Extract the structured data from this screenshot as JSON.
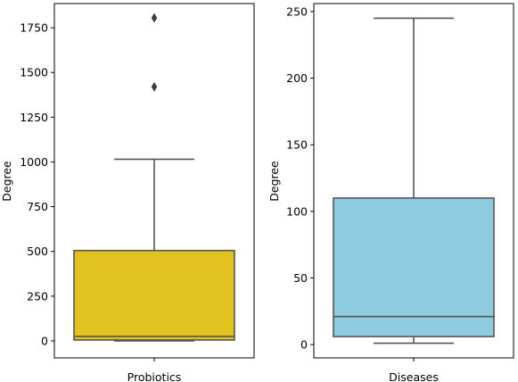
{
  "chart_data": [
    {
      "type": "box",
      "category": "Probiotics",
      "xlabel": "",
      "ylabel": "Degree",
      "ylim": [
        -95,
        1885
      ],
      "yticks": [
        0,
        250,
        500,
        750,
        1000,
        1250,
        1500,
        1750
      ],
      "box": {
        "whisker_low": 0,
        "q1": 5,
        "median": 25,
        "q3": 505,
        "whisker_high": 1015
      },
      "outliers": [
        1420,
        1805
      ],
      "color": "#e1c21e"
    },
    {
      "type": "box",
      "category": "Diseases",
      "xlabel": "",
      "ylabel": "Degree",
      "ylim": [
        -10,
        256
      ],
      "yticks": [
        0,
        50,
        100,
        150,
        200,
        250
      ],
      "box": {
        "whisker_low": 1,
        "q1": 6,
        "median": 21,
        "q3": 110,
        "whisker_high": 245
      },
      "outliers": [],
      "color": "#8ecae0"
    }
  ]
}
